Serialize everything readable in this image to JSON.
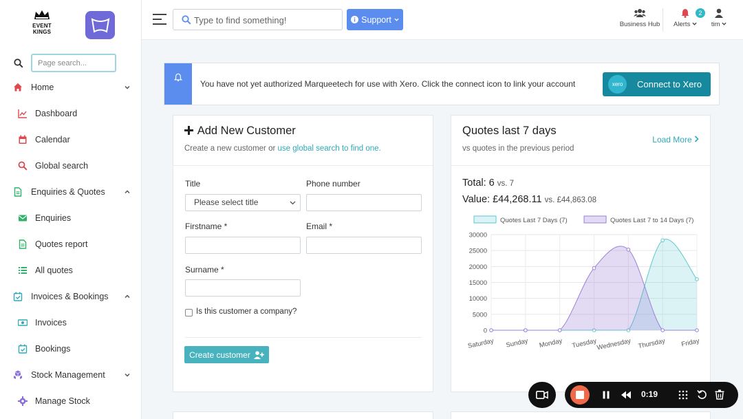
{
  "sidebar": {
    "brand_text_line1": "EVENT",
    "brand_text_line2": "KINGS",
    "search_placeholder": "Page search...",
    "items": [
      {
        "label": "Home",
        "level": "top",
        "chevron": "down"
      },
      {
        "label": "Dashboard",
        "level": "sub"
      },
      {
        "label": "Calendar",
        "level": "sub"
      },
      {
        "label": "Global search",
        "level": "sub"
      },
      {
        "label": "Enquiries & Quotes",
        "level": "top",
        "chevron": "up"
      },
      {
        "label": "Enquiries",
        "level": "sub"
      },
      {
        "label": "Quotes report",
        "level": "sub"
      },
      {
        "label": "All quotes",
        "level": "sub"
      },
      {
        "label": "Invoices & Bookings",
        "level": "top",
        "chevron": "up"
      },
      {
        "label": "Invoices",
        "level": "sub"
      },
      {
        "label": "Bookings",
        "level": "sub"
      },
      {
        "label": "Stock Management",
        "level": "top",
        "chevron": "down"
      },
      {
        "label": "Manage Stock",
        "level": "sub"
      }
    ]
  },
  "topbar": {
    "search_placeholder": "Type to find something!",
    "support_label": "Support",
    "business_hub_label": "Business Hub",
    "alerts_label": "Alerts",
    "alerts_count": "2",
    "user_label": "tim"
  },
  "alert": {
    "message": "You have not yet authorized Marqueetech for use with Xero. Click the connect icon to link your account",
    "xero_logo_text": "xero",
    "button_label": "Connect to Xero"
  },
  "add_customer": {
    "title": "Add New Customer",
    "subtitle_prefix": "Create a new customer or ",
    "subtitle_link": "use global search to find one.",
    "title_label": "Title",
    "title_select_value": "Please select title",
    "phone_label": "Phone number",
    "firstname_label": "Firstname *",
    "email_label": "Email *",
    "surname_label": "Surname *",
    "company_checkbox_label": "Is this customer a company?",
    "create_button_label": "Create customer"
  },
  "quotes": {
    "title": "Quotes last 7 days",
    "subtitle": "vs quotes in the previous period",
    "load_more_label": "Load More",
    "total_label": "Total: 6",
    "total_compare": "vs. 7",
    "value_label": "Value: £44,268.11",
    "value_compare": "vs. £44,863.08"
  },
  "chart_data": {
    "type": "area",
    "categories": [
      "Saturday",
      "Sunday",
      "Monday",
      "Tuesday",
      "Wednesday",
      "Thursday",
      "Friday"
    ],
    "series": [
      {
        "name": "Quotes Last 7 Days (7)",
        "values": [
          0,
          0,
          0,
          0,
          0,
          28200,
          16000
        ],
        "color": "#5cc9cc"
      },
      {
        "name": "Quotes Last 7 to 14 Days (7)",
        "values": [
          0,
          0,
          0,
          19500,
          25300,
          0,
          0
        ],
        "color": "#9b7fd6"
      }
    ],
    "ylim": [
      0,
      30000
    ],
    "yticks": [
      0,
      5000,
      10000,
      15000,
      20000,
      25000,
      30000
    ],
    "legend": "top",
    "grid": true
  },
  "recorder": {
    "time": "0:19"
  },
  "colors": {
    "accent": "#5b8def",
    "teal": "#48b3bf",
    "xero": "#16899f",
    "brand_purple": "#6f6ad8",
    "nav_icon": "#e0464e"
  }
}
